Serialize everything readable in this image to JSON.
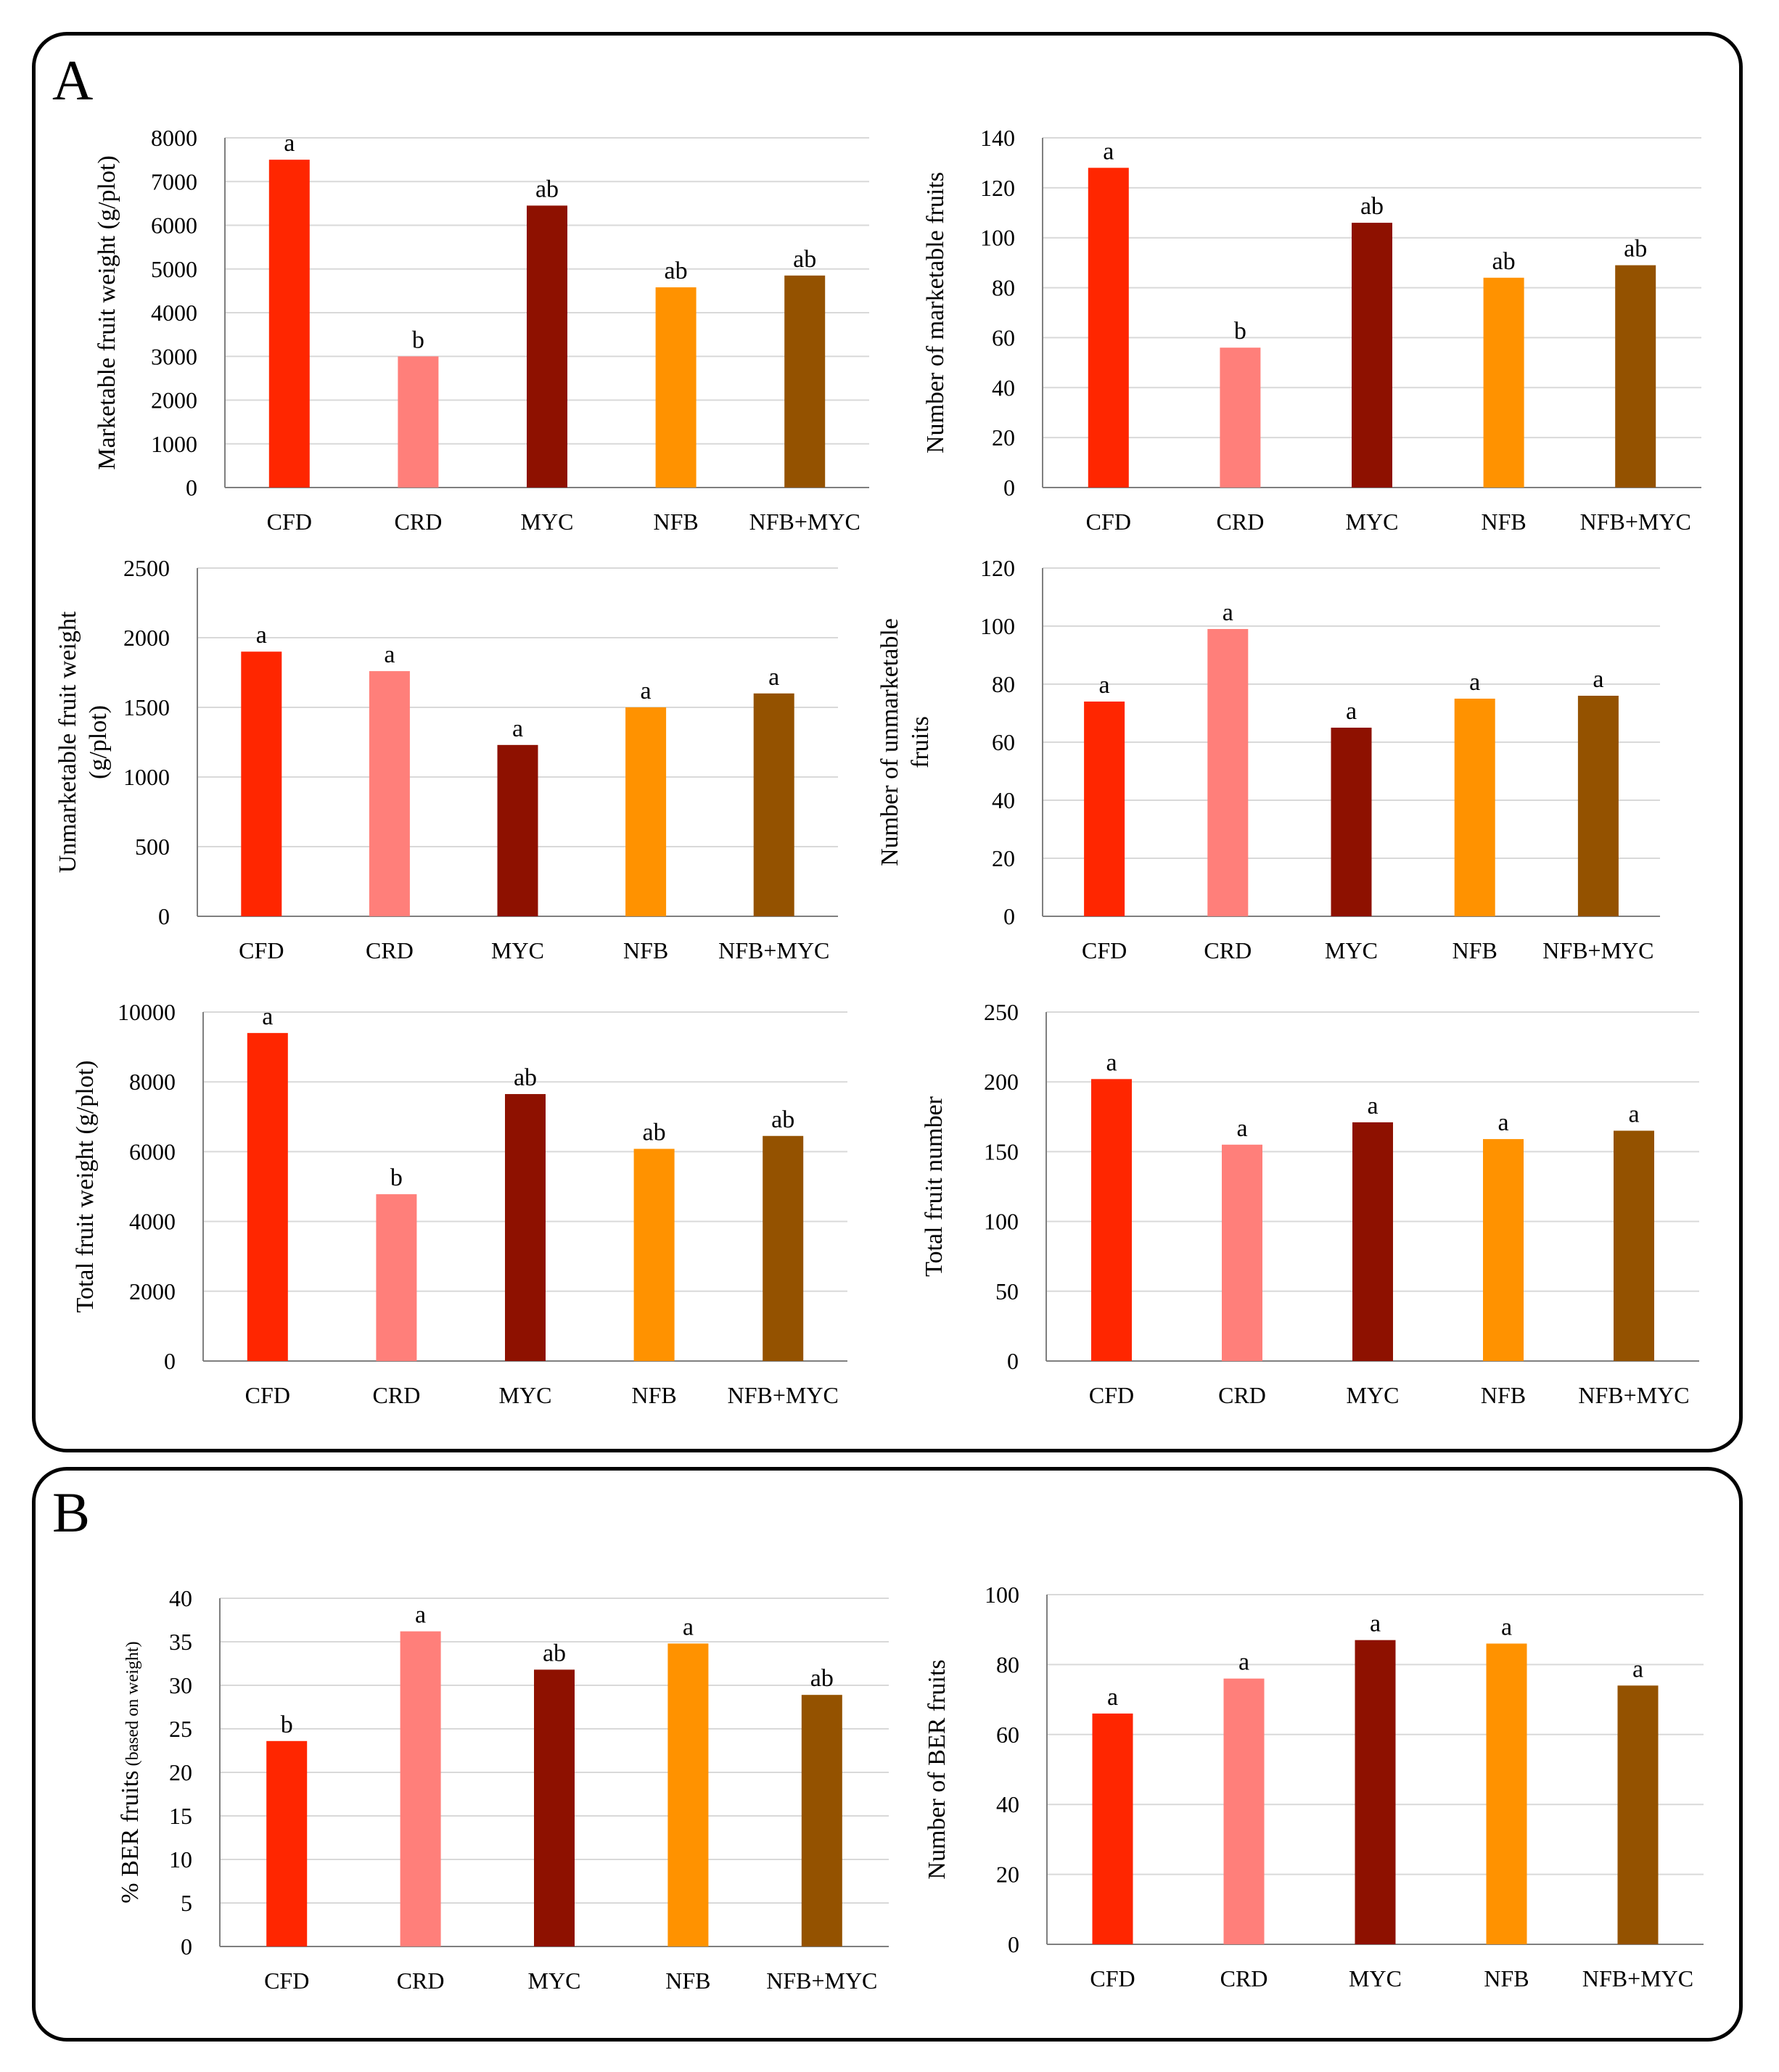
{
  "panels": [
    {
      "label": "A"
    },
    {
      "label": "B"
    }
  ],
  "colors": {
    "CFD": "#ff2600",
    "CRD": "#ff7f7a",
    "MYC": "#8e1100",
    "NFB": "#ff9200",
    "NFB+MYC": "#945200",
    "grid": "#d9d9d9",
    "axis": "#7f7f7f"
  },
  "chart_data": [
    {
      "type": "bar",
      "panel": "A",
      "categories": [
        "CFD",
        "CRD",
        "MYC",
        "NFB",
        "NFB+MYC"
      ],
      "values": [
        7500,
        3000,
        6450,
        4580,
        4850
      ],
      "letters": [
        "a",
        "b",
        "ab",
        "ab",
        "ab"
      ],
      "ylabel": [
        "Marketable fruit weight (g/plot)"
      ],
      "ylim": [
        0,
        8000
      ],
      "yticks": [
        0,
        1000,
        2000,
        3000,
        4000,
        5000,
        6000,
        7000,
        8000
      ]
    },
    {
      "type": "bar",
      "panel": "A",
      "categories": [
        "CFD",
        "CRD",
        "MYC",
        "NFB",
        "NFB+MYC"
      ],
      "values": [
        128,
        56,
        106,
        84,
        89
      ],
      "letters": [
        "a",
        "b",
        "ab",
        "ab",
        "ab"
      ],
      "ylabel": [
        "Number of marketable fruits"
      ],
      "ylim": [
        0,
        140
      ],
      "yticks": [
        0,
        20,
        40,
        60,
        80,
        100,
        120,
        140
      ]
    },
    {
      "type": "bar",
      "panel": "A",
      "categories": [
        "CFD",
        "CRD",
        "MYC",
        "NFB",
        "NFB+MYC"
      ],
      "values": [
        1900,
        1760,
        1230,
        1500,
        1600
      ],
      "letters": [
        "a",
        "a",
        "a",
        "a",
        "a"
      ],
      "ylabel": [
        "Unmarketable fruit weight",
        "(g/plot)"
      ],
      "ylim": [
        0,
        2500
      ],
      "yticks": [
        0,
        500,
        1000,
        1500,
        2000,
        2500
      ]
    },
    {
      "type": "bar",
      "panel": "A",
      "categories": [
        "CFD",
        "CRD",
        "MYC",
        "NFB",
        "NFB+MYC"
      ],
      "values": [
        74,
        99,
        65,
        75,
        76
      ],
      "letters": [
        "a",
        "a",
        "a",
        "a",
        "a"
      ],
      "ylabel": [
        "Number of unmarketable",
        "fruits"
      ],
      "ylim": [
        0,
        120
      ],
      "yticks": [
        0,
        20,
        40,
        60,
        80,
        100,
        120
      ]
    },
    {
      "type": "bar",
      "panel": "A",
      "categories": [
        "CFD",
        "CRD",
        "MYC",
        "NFB",
        "NFB+MYC"
      ],
      "values": [
        9400,
        4780,
        7650,
        6080,
        6450
      ],
      "letters": [
        "a",
        "b",
        "ab",
        "ab",
        "ab"
      ],
      "ylabel": [
        "Total fruit weight (g/plot)"
      ],
      "ylim": [
        0,
        10000
      ],
      "yticks": [
        0,
        2000,
        4000,
        6000,
        8000,
        10000
      ]
    },
    {
      "type": "bar",
      "panel": "A",
      "categories": [
        "CFD",
        "CRD",
        "MYC",
        "NFB",
        "NFB+MYC"
      ],
      "values": [
        202,
        155,
        171,
        159,
        165
      ],
      "letters": [
        "a",
        "a",
        "a",
        "a",
        "a"
      ],
      "ylabel": [
        "Total fruit number"
      ],
      "ylim": [
        0,
        250
      ],
      "yticks": [
        0,
        50,
        100,
        150,
        200,
        250
      ]
    },
    {
      "type": "bar",
      "panel": "B",
      "categories": [
        "CFD",
        "CRD",
        "MYC",
        "NFB",
        "NFB+MYC"
      ],
      "values": [
        23.6,
        36.2,
        31.8,
        34.8,
        28.9
      ],
      "letters": [
        "b",
        "a",
        "ab",
        "a",
        "ab"
      ],
      "ylabel": [
        "% BER fruits"
      ],
      "ylabel_small": "(based on weight)",
      "ylim": [
        0,
        40
      ],
      "yticks": [
        0,
        5,
        10,
        15,
        20,
        25,
        30,
        35,
        40
      ]
    },
    {
      "type": "bar",
      "panel": "B",
      "categories": [
        "CFD",
        "CRD",
        "MYC",
        "NFB",
        "NFB+MYC"
      ],
      "values": [
        66,
        76,
        87,
        86,
        74
      ],
      "letters": [
        "a",
        "a",
        "a",
        "a",
        "a"
      ],
      "ylabel": [
        "Number of BER fruits"
      ],
      "ylim": [
        0,
        100
      ],
      "yticks": [
        0,
        20,
        40,
        60,
        80,
        100
      ]
    }
  ]
}
